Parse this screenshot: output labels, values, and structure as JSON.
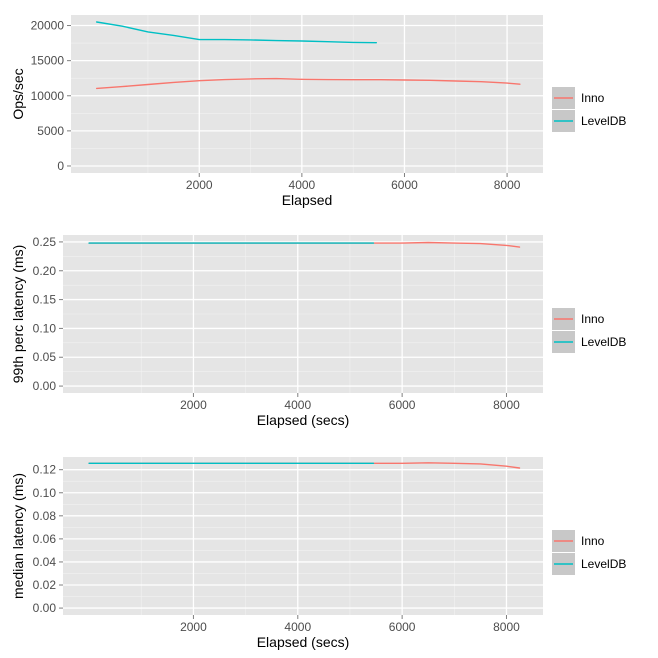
{
  "colors": {
    "panel": "#e5e5e5",
    "grid_major": "#ffffff",
    "grid_minor": "#f2f2f2",
    "tick_text": "#4d4d4d",
    "legend_key_bg": "#c8c8c8"
  },
  "chart_data": [
    {
      "type": "line",
      "xlabel": "Elapsed",
      "ylabel": "Ops/sec",
      "xlim": [
        -500,
        8700
      ],
      "ylim": [
        -1000,
        21500
      ],
      "xticks": [
        2000,
        4000,
        6000,
        8000
      ],
      "xtick_labels": [
        "2000",
        "4000",
        "6000",
        "8000"
      ],
      "yticks": [
        0,
        5000,
        10000,
        15000,
        20000
      ],
      "ytick_labels": [
        "0",
        "5000",
        "10000",
        "15000",
        "20000"
      ],
      "grid": true,
      "legend": "right",
      "series": [
        {
          "name": "Inno",
          "color": "#f8766d",
          "x": [
            0,
            500,
            1000,
            1500,
            2000,
            2500,
            3000,
            3500,
            4000,
            4500,
            5000,
            5500,
            6000,
            6500,
            7000,
            7500,
            8000,
            8250
          ],
          "y": [
            11050,
            11300,
            11600,
            11900,
            12150,
            12300,
            12400,
            12450,
            12350,
            12300,
            12280,
            12280,
            12250,
            12200,
            12100,
            12000,
            11800,
            11650
          ]
        },
        {
          "name": "LevelDB",
          "color": "#00bfc4",
          "x": [
            0,
            500,
            1000,
            1500,
            2000,
            2500,
            3000,
            3500,
            4000,
            4500,
            5000,
            5450
          ],
          "y": [
            20500,
            19900,
            19100,
            18600,
            18000,
            18000,
            17950,
            17850,
            17800,
            17700,
            17600,
            17550
          ]
        }
      ]
    },
    {
      "type": "line",
      "xlabel": "Elapsed (secs)",
      "ylabel": "99th perc latency (ms)",
      "xlim": [
        -500,
        8700
      ],
      "ylim": [
        -0.012,
        0.262
      ],
      "xticks": [
        2000,
        4000,
        6000,
        8000
      ],
      "xtick_labels": [
        "2000",
        "4000",
        "6000",
        "8000"
      ],
      "yticks": [
        0,
        0.05,
        0.1,
        0.15,
        0.2,
        0.25
      ],
      "ytick_labels": [
        "0.00",
        "0.05",
        "0.10",
        "0.15",
        "0.20",
        "0.25"
      ],
      "grid": true,
      "legend": "right",
      "series": [
        {
          "name": "Inno",
          "color": "#f8766d",
          "x": [
            0,
            1000,
            2000,
            3000,
            4000,
            5000,
            6000,
            6500,
            7000,
            7500,
            8000,
            8250
          ],
          "y": [
            0.248,
            0.248,
            0.248,
            0.248,
            0.248,
            0.248,
            0.248,
            0.249,
            0.248,
            0.247,
            0.244,
            0.241
          ]
        },
        {
          "name": "LevelDB",
          "color": "#00bfc4",
          "x": [
            0,
            1000,
            2000,
            3000,
            4000,
            5000,
            5450
          ],
          "y": [
            0.248,
            0.248,
            0.248,
            0.248,
            0.248,
            0.248,
            0.248
          ]
        }
      ]
    },
    {
      "type": "line",
      "xlabel": "Elapsed (secs)",
      "ylabel": "median latency (ms)",
      "xlim": [
        -500,
        8700
      ],
      "ylim": [
        -0.006,
        0.131
      ],
      "xticks": [
        2000,
        4000,
        6000,
        8000
      ],
      "xtick_labels": [
        "2000",
        "4000",
        "6000",
        "8000"
      ],
      "yticks": [
        0,
        0.02,
        0.04,
        0.06,
        0.08,
        0.1,
        0.12
      ],
      "ytick_labels": [
        "0.00",
        "0.02",
        "0.04",
        "0.06",
        "0.08",
        "0.10",
        "0.12"
      ],
      "grid": true,
      "legend": "right",
      "series": [
        {
          "name": "Inno",
          "color": "#f8766d",
          "x": [
            0,
            1000,
            2000,
            3000,
            4000,
            5000,
            6000,
            6500,
            7000,
            7500,
            8000,
            8250
          ],
          "y": [
            0.1255,
            0.1255,
            0.1255,
            0.1255,
            0.1255,
            0.1255,
            0.1255,
            0.126,
            0.1255,
            0.125,
            0.123,
            0.1215
          ]
        },
        {
          "name": "LevelDB",
          "color": "#00bfc4",
          "x": [
            0,
            1000,
            2000,
            3000,
            4000,
            5000,
            5450
          ],
          "y": [
            0.1255,
            0.1255,
            0.1255,
            0.1255,
            0.1255,
            0.1255,
            0.1255
          ]
        }
      ]
    }
  ]
}
